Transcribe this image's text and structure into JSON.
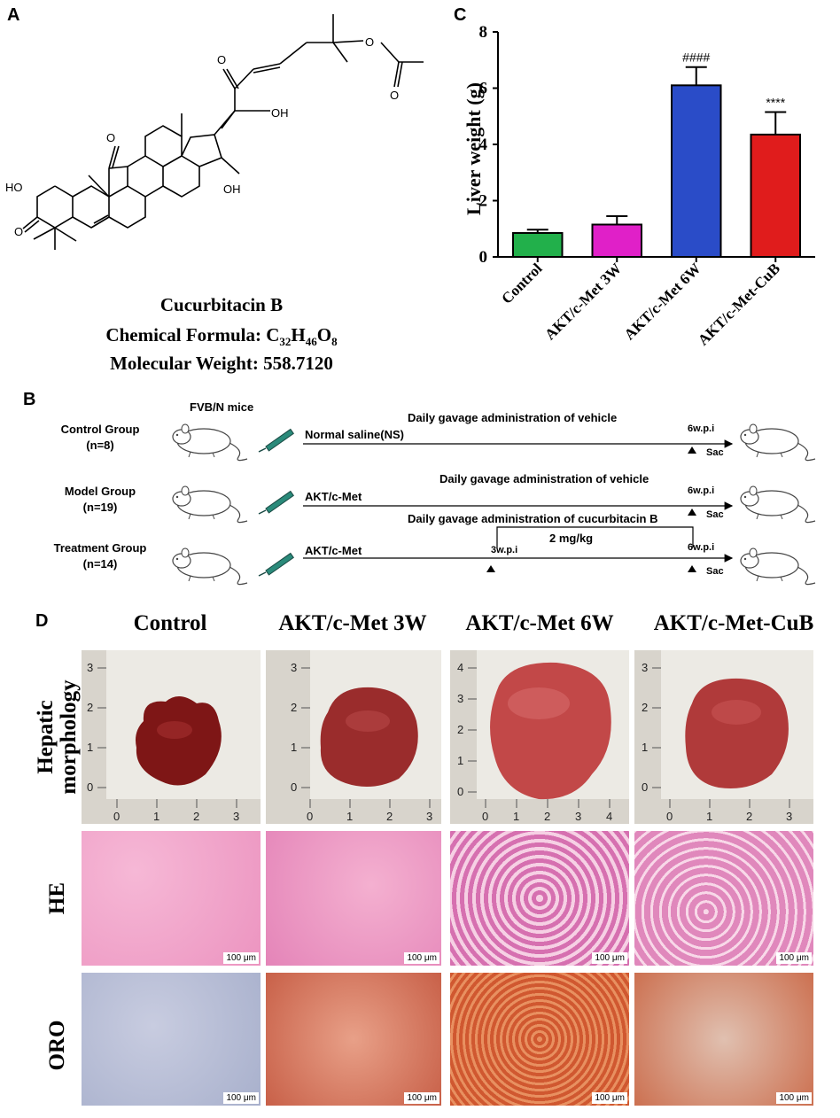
{
  "panels": {
    "A": "A",
    "B": "B",
    "C": "C",
    "D": "D"
  },
  "panelA": {
    "labels": {
      "ho_left": "HO",
      "oh_17": "OH",
      "oh_16": "OH",
      "o_11": "O",
      "o_22": "O",
      "o_25": "O",
      "o_acetyl": "O",
      "o_3": "O"
    },
    "compound_name": "Cucurbitacin B",
    "formula_label": "Chemical Formula: ",
    "formula": {
      "c": "C",
      "c_n": "32",
      "h": "H",
      "h_n": "46",
      "o": "O",
      "o_n": "8"
    },
    "weight_label": "Molecular Weight: ",
    "weight_value": "558.7120"
  },
  "panelB": {
    "mice_label": "FVB/N mice",
    "groups": [
      {
        "name": "Control Group",
        "n": "(n=8)",
        "agent": "Normal saline(NS)",
        "admin": "Daily gavage administration of vehicle",
        "end": "6w.p.i",
        "sac": "Sac"
      },
      {
        "name": "Model Group",
        "n": "(n=19)",
        "agent": "AKT/c-Met",
        "admin": "Daily gavage administration of vehicle",
        "end": "6w.p.i",
        "sac": "Sac"
      },
      {
        "name": "Treatment Group",
        "n": "(n=14)",
        "agent": "AKT/c-Met",
        "admin": "Daily gavage administration of cucurbitacin B",
        "dose": "2 mg/kg",
        "start": "3w.p.i",
        "end": "6w.p.i",
        "sac": "Sac"
      }
    ]
  },
  "chart_data": {
    "type": "bar",
    "categories": [
      "Control",
      "AKT/c-Met 3W",
      "AKT/c-Met 6W",
      "AKT/c-Met-CuB"
    ],
    "values": [
      0.85,
      1.15,
      6.1,
      4.35
    ],
    "errors": [
      0.12,
      0.3,
      0.65,
      0.8
    ],
    "annotations": [
      "",
      "",
      "####",
      "****"
    ],
    "colors": [
      "#22b04b",
      "#e020c8",
      "#2a4cc8",
      "#e01c1c"
    ],
    "ylabel": "Liver weight (g)",
    "ylim": [
      0,
      8
    ],
    "yticks": [
      "0",
      "2",
      "4",
      "6",
      "8"
    ],
    "grid": false
  },
  "panelD": {
    "columns": [
      "Control",
      "AKT/c-Met 3W",
      "AKT/c-Met 6W",
      "AKT/c-Met-CuB"
    ],
    "rows": [
      "Hepatic morphology",
      "HE",
      "ORO"
    ],
    "scalebar": "100 μm",
    "ruler_v": [
      "3",
      "2",
      "1",
      "0"
    ],
    "ruler_v_6w": [
      "4",
      "3",
      "2",
      "1",
      "0"
    ],
    "ruler_h": [
      "0",
      "1",
      "2",
      "3"
    ],
    "ruler_h_6w": [
      "0",
      "1",
      "2",
      "3",
      "4"
    ]
  },
  "colors": {
    "he_pink": "#f0a0c8",
    "oro_blue": "#b8c0d8",
    "oro_red": "#d87050",
    "liver_dark": "#8a1a1a",
    "liver_light": "#c85050"
  }
}
